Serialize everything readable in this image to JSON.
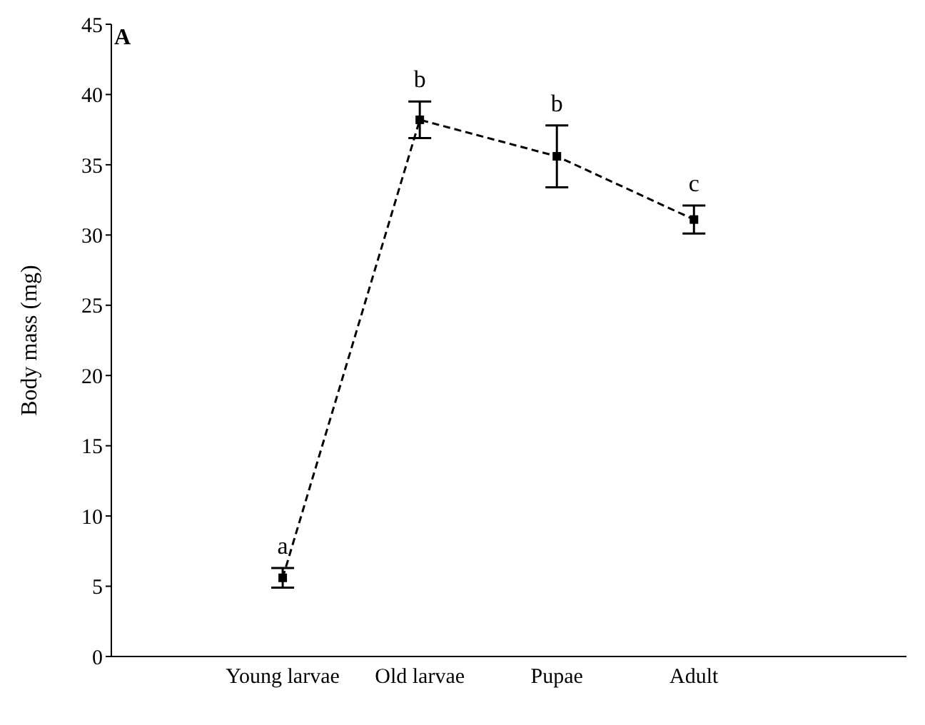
{
  "chart_data": {
    "type": "line",
    "ylabel": "Body mass (mg)",
    "categories": [
      "Young larvae",
      "Old larvae",
      "Pupae",
      "Adult"
    ],
    "series": [
      {
        "color": "#000000",
        "values": [
          5.6,
          38.2,
          35.6,
          31.1
        ],
        "errors": [
          0.7,
          1.3,
          2.2,
          1.0
        ]
      }
    ],
    "ylim": [
      0,
      45
    ],
    "yticks": [
      0,
      5,
      10,
      15,
      20,
      25,
      30,
      35,
      40,
      45
    ],
    "grid": false,
    "legend": false,
    "marker": "square",
    "line_style": "dashed",
    "annotations": [
      "A",
      "a",
      "b",
      "b",
      "c"
    ]
  }
}
